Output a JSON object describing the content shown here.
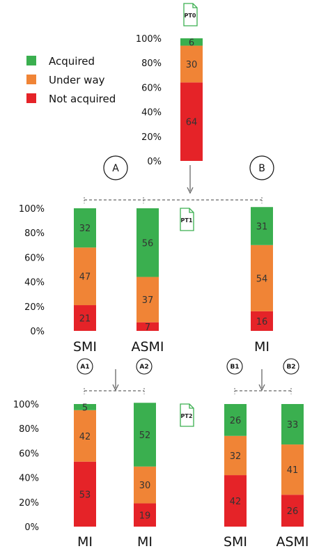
{
  "colors": {
    "acquired": "#3aaf4f",
    "under_way": "#f08436",
    "not_acquired": "#e52328"
  },
  "legend": [
    {
      "label": "Acquired",
      "color": "#3aaf4f"
    },
    {
      "label": "Under way",
      "color": "#f08436"
    },
    {
      "label": "Not acquired",
      "color": "#e52328"
    }
  ],
  "markers": {
    "pt0": "PT0",
    "pt1": "PT1",
    "pt2": "PT2",
    "a": "A",
    "b": "B",
    "a1": "A1",
    "a2": "A2",
    "b1": "B1",
    "b2": "B2"
  },
  "y_ticks": [
    "0%",
    "20%",
    "40%",
    "60%",
    "80%",
    "100%"
  ],
  "chart_data": [
    {
      "type": "bar",
      "stacked": true,
      "ylim": [
        0,
        100
      ],
      "categories": [
        ""
      ],
      "series": [
        {
          "name": "Not acquired",
          "values": [
            64
          ]
        },
        {
          "name": "Under way",
          "values": [
            30
          ]
        },
        {
          "name": "Acquired",
          "values": [
            6
          ]
        }
      ]
    },
    {
      "type": "bar",
      "stacked": true,
      "ylim": [
        0,
        100
      ],
      "categories": [
        "SMI",
        "ASMI",
        "MI"
      ],
      "series": [
        {
          "name": "Not acquired",
          "values": [
            21,
            7,
            16
          ]
        },
        {
          "name": "Under way",
          "values": [
            47,
            37,
            54
          ]
        },
        {
          "name": "Acquired",
          "values": [
            32,
            56,
            31
          ]
        }
      ]
    },
    {
      "type": "bar",
      "stacked": true,
      "ylim": [
        0,
        100
      ],
      "categories": [
        "MI",
        "MI",
        "SMI",
        "ASMI"
      ],
      "series": [
        {
          "name": "Not acquired",
          "values": [
            53,
            19,
            42,
            26
          ]
        },
        {
          "name": "Under way",
          "values": [
            42,
            30,
            32,
            41
          ]
        },
        {
          "name": "Acquired",
          "values": [
            5,
            52,
            26,
            33
          ]
        }
      ]
    }
  ]
}
